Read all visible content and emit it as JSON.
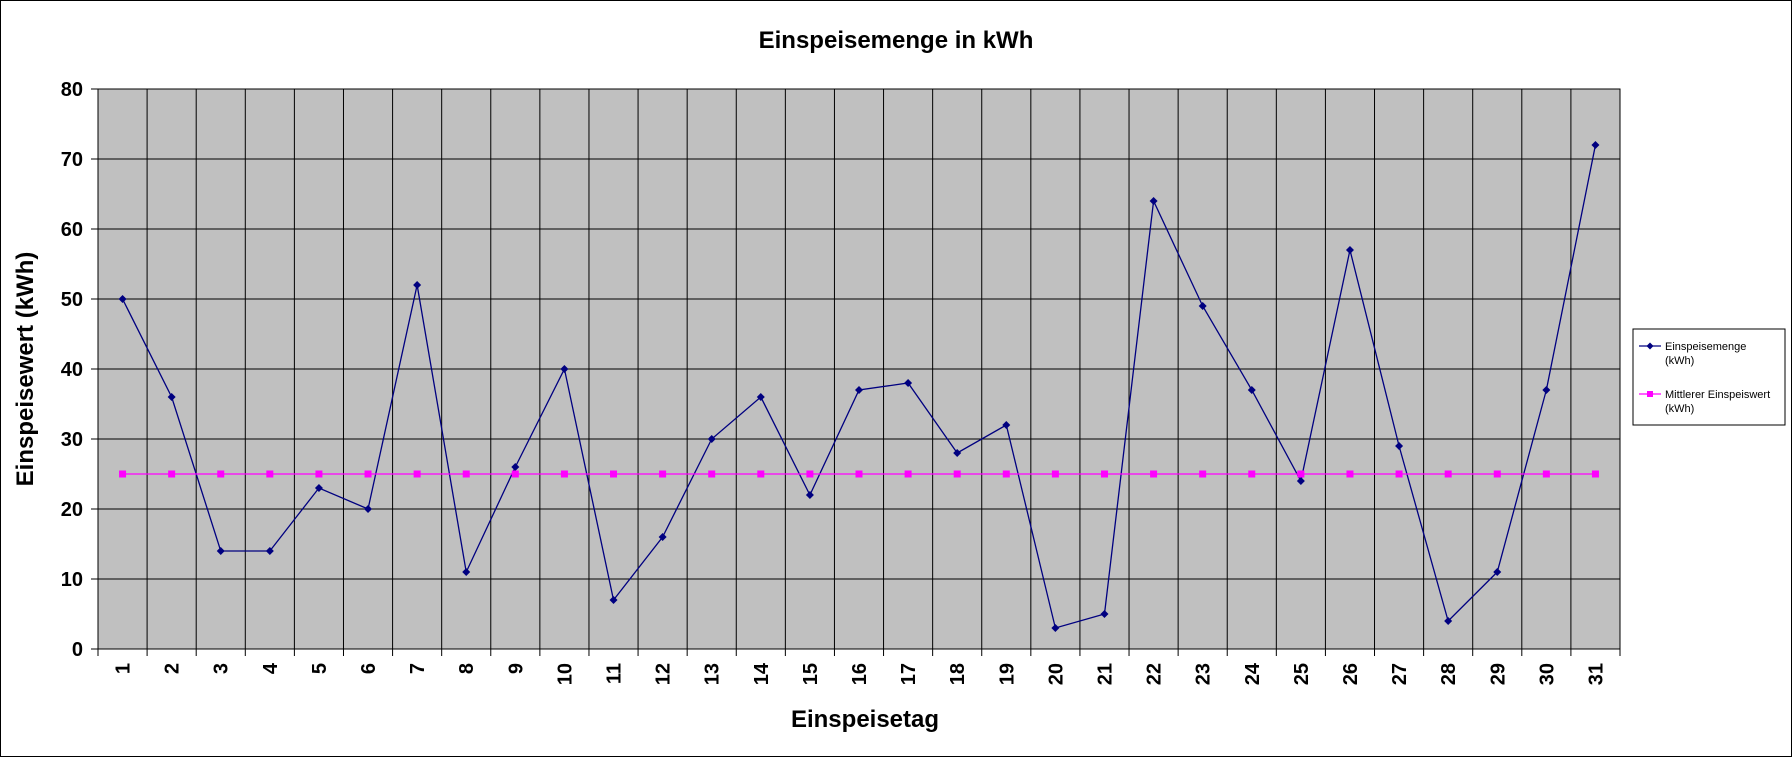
{
  "chart_data": {
    "type": "line",
    "title": "Einspeisemenge in kWh",
    "xlabel": "Einspeisetag",
    "ylabel": "Einspeisewert  (kWh)",
    "ylim": [
      0,
      80
    ],
    "yticks": [
      0,
      10,
      20,
      30,
      40,
      50,
      60,
      70,
      80
    ],
    "grid": true,
    "legend_position": "right",
    "categories": [
      "1",
      "2",
      "3",
      "4",
      "5",
      "6",
      "7",
      "8",
      "9",
      "10",
      "11",
      "12",
      "13",
      "14",
      "15",
      "16",
      "17",
      "18",
      "19",
      "20",
      "21",
      "22",
      "23",
      "24",
      "25",
      "26",
      "27",
      "28",
      "29",
      "30",
      "31"
    ],
    "series": [
      {
        "name": "Einspeisemenge (kWh)",
        "legend_lines": [
          "Einspeisemenge",
          "(kWh)"
        ],
        "color": "#000080",
        "marker": "diamond",
        "values": [
          50,
          36,
          14,
          14,
          23,
          20,
          52,
          11,
          26,
          40,
          7,
          16,
          30,
          36,
          22,
          37,
          38,
          28,
          32,
          3,
          5,
          64,
          49,
          37,
          24,
          57,
          29,
          4,
          11,
          37,
          72
        ]
      },
      {
        "name": "Mittlerer Einspeiswert (kWh)",
        "legend_lines": [
          "Mittlerer Einspeiswert",
          "(kWh)"
        ],
        "color": "#ff00ff",
        "marker": "square",
        "values": [
          25,
          25,
          25,
          25,
          25,
          25,
          25,
          25,
          25,
          25,
          25,
          25,
          25,
          25,
          25,
          25,
          25,
          25,
          25,
          25,
          25,
          25,
          25,
          25,
          25,
          25,
          25,
          25,
          25,
          25,
          25
        ]
      }
    ],
    "colors": {
      "plot_background": "#c0c0c0",
      "grid": "#000000"
    }
  }
}
